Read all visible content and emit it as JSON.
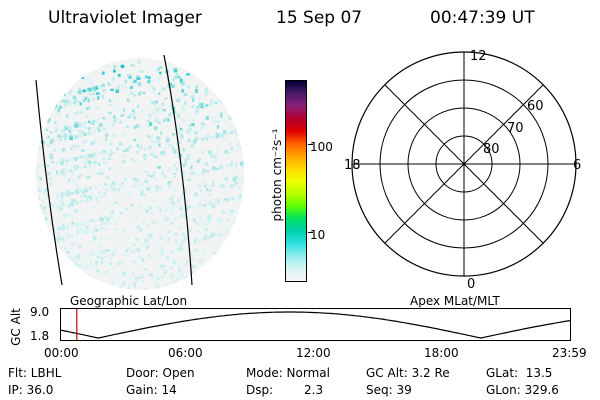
{
  "header": {
    "instrument": "Ultraviolet Imager",
    "date": "15 Sep 07",
    "time": "00:47:39 UT"
  },
  "colorbar": {
    "label": "photon cm⁻²s⁻¹",
    "ticks": [
      "100",
      "10"
    ],
    "colors": [
      "#000033",
      "#4b1a6b",
      "#8a1f7a",
      "#b0002a",
      "#e00000",
      "#ff6000",
      "#ffa500",
      "#ffd800",
      "#f0ff00",
      "#b8ff00",
      "#5dff00",
      "#00e060",
      "#00d0b0",
      "#30e0e0",
      "#90ecec",
      "#d8f4f4",
      "#f4f4f4"
    ]
  },
  "polar": {
    "hour_labels": {
      "top": "12",
      "bottom": "0",
      "left": "18",
      "right": "6"
    },
    "lat_labels": [
      "60",
      "70",
      "80"
    ]
  },
  "labels": {
    "left_map": "Geographic Lat/Lon",
    "right_map": "Apex MLat/MLT"
  },
  "altitude_plot": {
    "ylabel": "GC Alt",
    "yticks": [
      "9.0",
      "1.8"
    ],
    "xticks": [
      "00:00",
      "06:00",
      "12:00",
      "18:00",
      "23:59"
    ],
    "current_time_hours": 0.79
  },
  "info": {
    "flt": "Flt: LBHL",
    "door": "Door: Open",
    "mode": "Mode: Normal",
    "gcalt": "GC Alt: 3.2 Re",
    "glat": "GLat:  13.5",
    "ip": "IP: 36.0",
    "gain": "Gain: 14",
    "dsp_label": "Dsp:",
    "dsp_value": "2.3",
    "seq": "Seq: 39",
    "glon": "GLon: 329.6"
  }
}
